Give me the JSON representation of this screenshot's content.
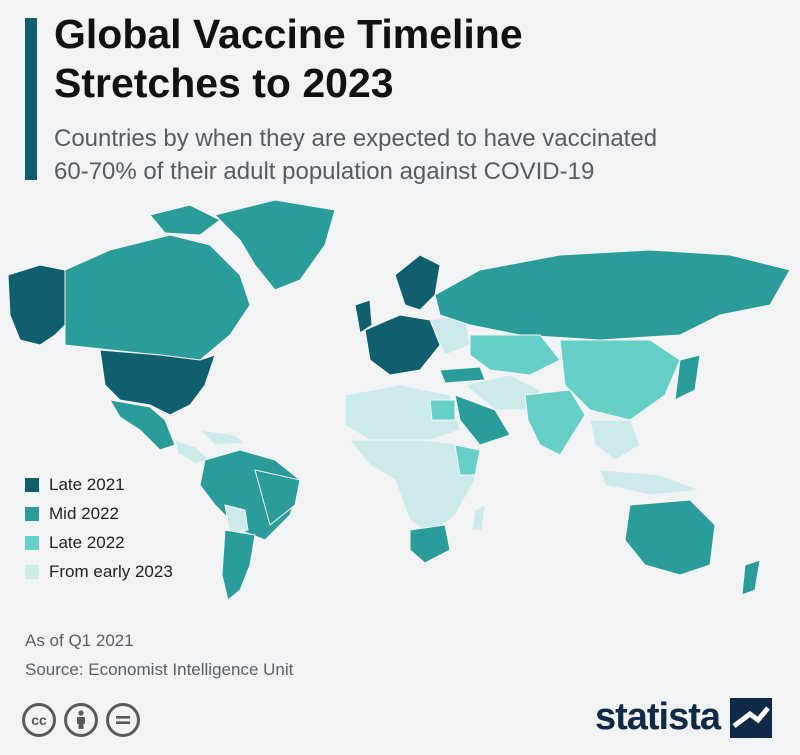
{
  "header": {
    "title_line1": "Global Vaccine Timeline",
    "title_line2": "Stretches to 2023",
    "subtitle_line1": "Countries by when they are expected to have vaccinated",
    "subtitle_line2": "60-70% of their adult population against COVID-19"
  },
  "colors": {
    "accent": "#0f5f6e",
    "late_2021": "#0f5f6e",
    "mid_2022": "#2a9d9a",
    "late_2022": "#65cfc8",
    "early_2023": "#cdeaea",
    "ocean": "#f1f3f5"
  },
  "legend": [
    {
      "label": "Late 2021",
      "color": "#0f5f6e"
    },
    {
      "label": "Mid 2022",
      "color": "#2a9d9a"
    },
    {
      "label": "Late 2022",
      "color": "#65cfc8"
    },
    {
      "label": "From early 2023",
      "color": "#cdeaea"
    }
  ],
  "footer": {
    "as_of": "As of Q1 2021",
    "source": "Source: Economist Intelligence Unit",
    "brand": "statista",
    "license_icons": [
      "cc-icon",
      "attribution-icon",
      "no-derivatives-icon"
    ]
  }
}
